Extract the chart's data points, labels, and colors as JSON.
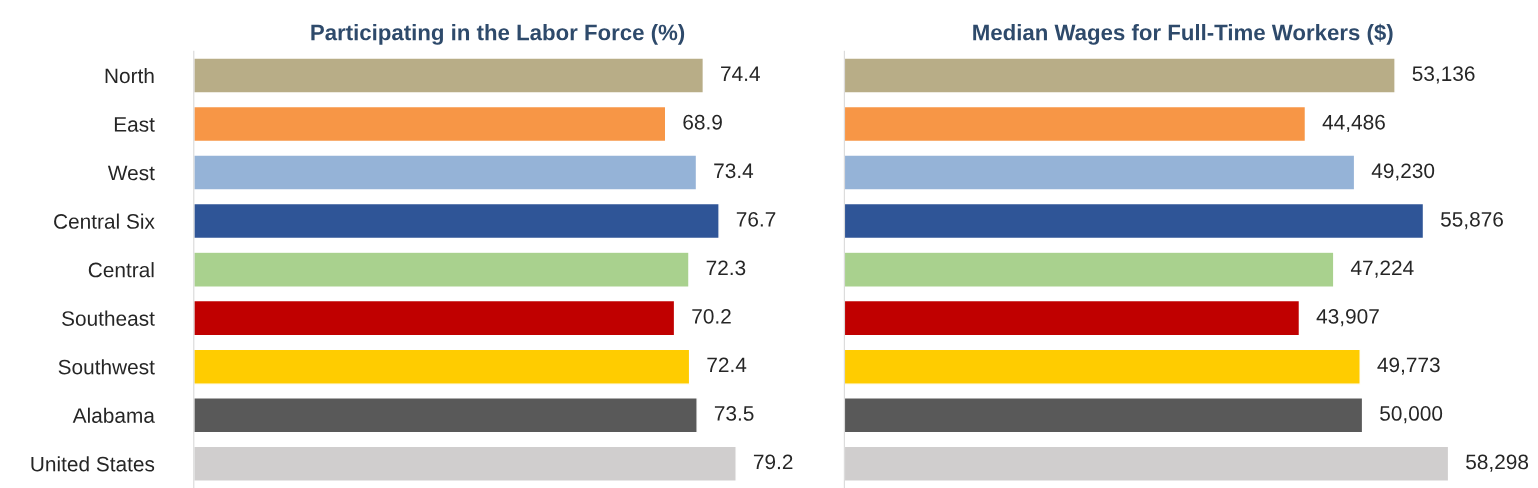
{
  "chart_data": [
    {
      "type": "bar",
      "orientation": "horizontal",
      "title": "Participating in the Labor Force (%)",
      "categories": [
        "North",
        "East",
        "West",
        "Central Six",
        "Central",
        "Southeast",
        "Southwest",
        "Alabama",
        "United States"
      ],
      "values": [
        74.4,
        68.9,
        73.4,
        76.7,
        72.3,
        70.2,
        72.4,
        73.5,
        79.2
      ],
      "value_labels": [
        "74.4",
        "68.9",
        "73.4",
        "76.7",
        "72.3",
        "70.2",
        "72.4",
        "73.5",
        "79.2"
      ],
      "colors": [
        "#b8ad87",
        "#f79646",
        "#95b3d7",
        "#2f5597",
        "#a9d18e",
        "#c00000",
        "#ffcc00",
        "#595959",
        "#d0cece"
      ],
      "tick_labels": "y",
      "grid": false
    },
    {
      "type": "bar",
      "orientation": "horizontal",
      "title": "Median Wages for Full-Time Workers ($)",
      "values": [
        53136,
        44486,
        49230,
        55876,
        47224,
        43907,
        49773,
        50000,
        58298
      ],
      "value_labels": [
        "53,136",
        "44,486",
        "49,230",
        "55,876",
        "47,224",
        "43,907",
        "49,773",
        "50,000",
        "58,298"
      ],
      "colors": [
        "#b8ad87",
        "#f79646",
        "#95b3d7",
        "#2f5597",
        "#a9d18e",
        "#c00000",
        "#ffcc00",
        "#595959",
        "#d0cece"
      ],
      "tick_labels": false,
      "grid": false
    }
  ]
}
